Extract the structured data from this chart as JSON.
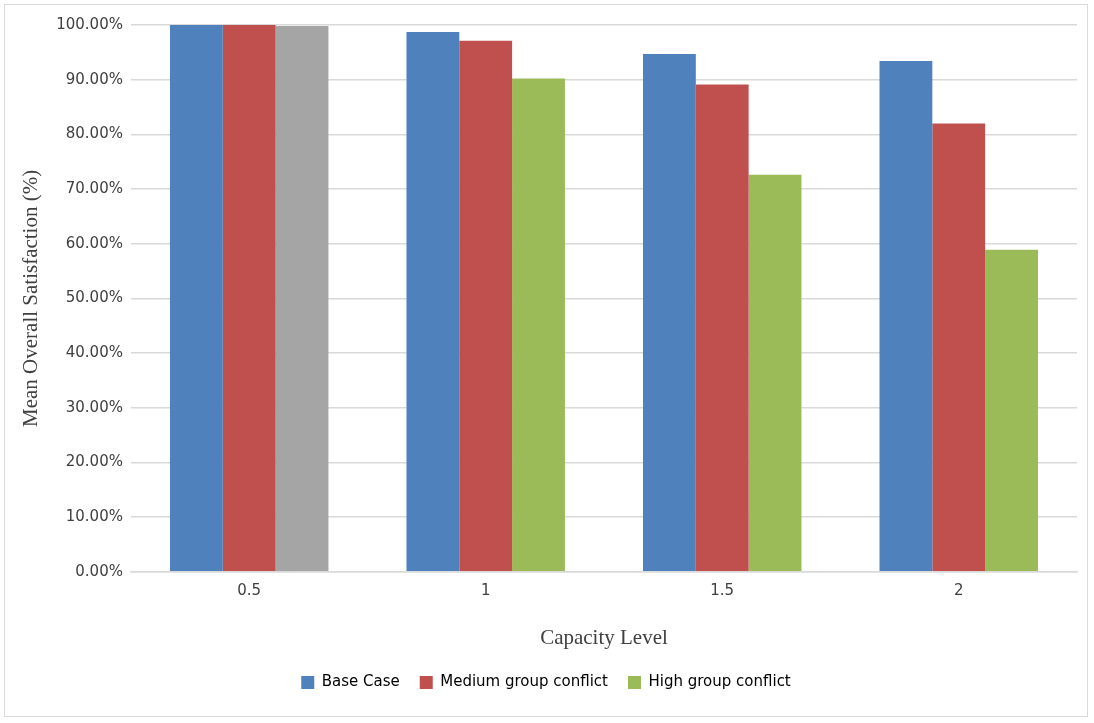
{
  "chart_data": {
    "type": "bar",
    "xlabel": "Capacity Level",
    "ylabel": "Mean Overall Satisfaction (%)",
    "categories": [
      "0.5",
      "1",
      "1.5",
      "2"
    ],
    "series": [
      {
        "name": "Base Case",
        "color": "#4f81bd",
        "values": [
          100,
          98.7,
          94.7,
          93.4
        ]
      },
      {
        "name": "Medium group conflict",
        "color": "#c0504d",
        "values": [
          100,
          97.1,
          89.1,
          82.0
        ]
      },
      {
        "name": "High group conflict",
        "color": "#9bbb59",
        "colors": [
          "#a5a5a5",
          "#9bbb59",
          "#9bbb59",
          "#9bbb59"
        ],
        "values": [
          99.8,
          90.2,
          72.6,
          58.9
        ]
      }
    ],
    "ylim": [
      0,
      100
    ],
    "yticks": [
      {
        "value": 0,
        "label": "0.00%"
      },
      {
        "value": 10,
        "label": "10.00%"
      },
      {
        "value": 20,
        "label": "20.00%"
      },
      {
        "value": 30,
        "label": "30.00%"
      },
      {
        "value": 40,
        "label": "40.00%"
      },
      {
        "value": 50,
        "label": "50.00%"
      },
      {
        "value": 60,
        "label": "60.00%"
      },
      {
        "value": 70,
        "label": "70.00%"
      },
      {
        "value": 80,
        "label": "80.00%"
      },
      {
        "value": 90,
        "label": "90.00%"
      },
      {
        "value": 100,
        "label": "100.00%"
      }
    ],
    "grid": "y",
    "legend": "bottom"
  }
}
